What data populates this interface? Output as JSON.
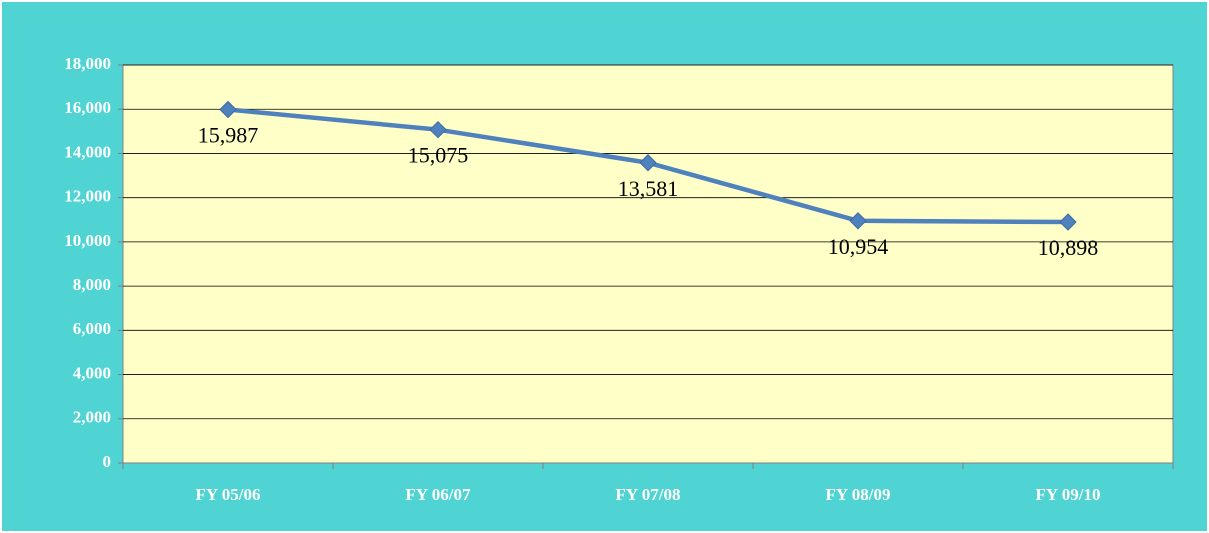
{
  "chart_data": {
    "type": "line",
    "categories": [
      "FY 05/06",
      "FY 06/07",
      "FY 07/08",
      "FY 08/09",
      "FY 09/10"
    ],
    "values": [
      15987,
      15075,
      13581,
      10954,
      10898
    ],
    "value_labels": [
      "15,987",
      "15,075",
      "13,581",
      "10,954",
      "10,898"
    ],
    "color": "#4f81bd",
    "ylim": [
      0,
      18000
    ],
    "yticks": [
      0,
      {
        "value": 2000,
        "label": "2,000"
      },
      {
        "value": 4000,
        "label": "4,000"
      },
      {
        "value": 6000,
        "label": "6,000"
      },
      {
        "value": 8000,
        "label": "8,000"
      },
      {
        "value": 10000,
        "label": "10,000"
      },
      {
        "value": 12000,
        "label": "12,000"
      },
      {
        "value": 14000,
        "label": "14,000"
      },
      {
        "value": 16000,
        "label": "16,000"
      },
      {
        "value": 18000,
        "label": "18,000"
      }
    ],
    "grid": true
  }
}
